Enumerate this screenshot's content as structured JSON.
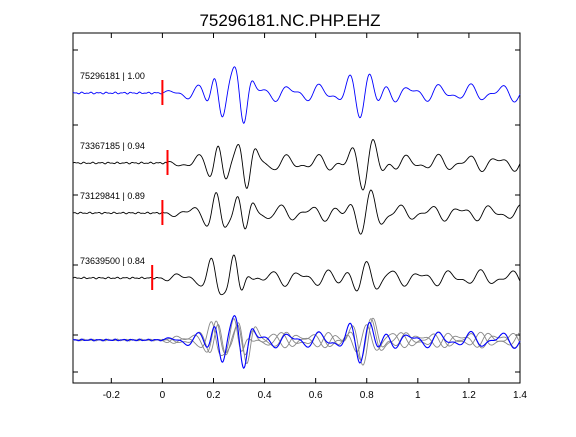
{
  "chart_data": {
    "type": "line",
    "title": "75296181.NC.PHP.EHZ",
    "xlabel": "",
    "ylabel": "",
    "xlim": [
      -0.35,
      1.4
    ],
    "x_ticks": [
      -0.2,
      0,
      0.2,
      0.4,
      0.6,
      0.8,
      1,
      1.2,
      1.4
    ],
    "x_tick_labels": [
      "-0.2",
      "0",
      "0.2",
      "0.4",
      "0.6",
      "0.8",
      "1",
      "1.2",
      "1.4"
    ],
    "grid": false,
    "legend": "none",
    "series": [
      {
        "name": "75296181 | 1.00",
        "event_id": "75296181",
        "correlation": "1.00",
        "pick_time": 0.0,
        "lag": 0.0,
        "amplitude": 1.0,
        "color": "#0000ff"
      },
      {
        "name": "73367185 | 0.94",
        "event_id": "73367185",
        "correlation": "0.94",
        "pick_time": 0.02,
        "lag": 0.015,
        "amplitude": 0.95,
        "color": "#000000"
      },
      {
        "name": "73129841 | 0.89",
        "event_id": "73129841",
        "correlation": "0.89",
        "pick_time": 0.0,
        "lag": 0.01,
        "amplitude": 0.9,
        "color": "#000000"
      },
      {
        "name": "73639500 | 0.84",
        "event_id": "73639500",
        "correlation": "0.84",
        "pick_time": -0.04,
        "lag": -0.005,
        "amplitude": 0.9,
        "color": "#000000"
      }
    ],
    "stack_colors": {
      "reference": "#0000ff",
      "others": "#888888"
    },
    "pick_marker_color": "#ff0000"
  }
}
